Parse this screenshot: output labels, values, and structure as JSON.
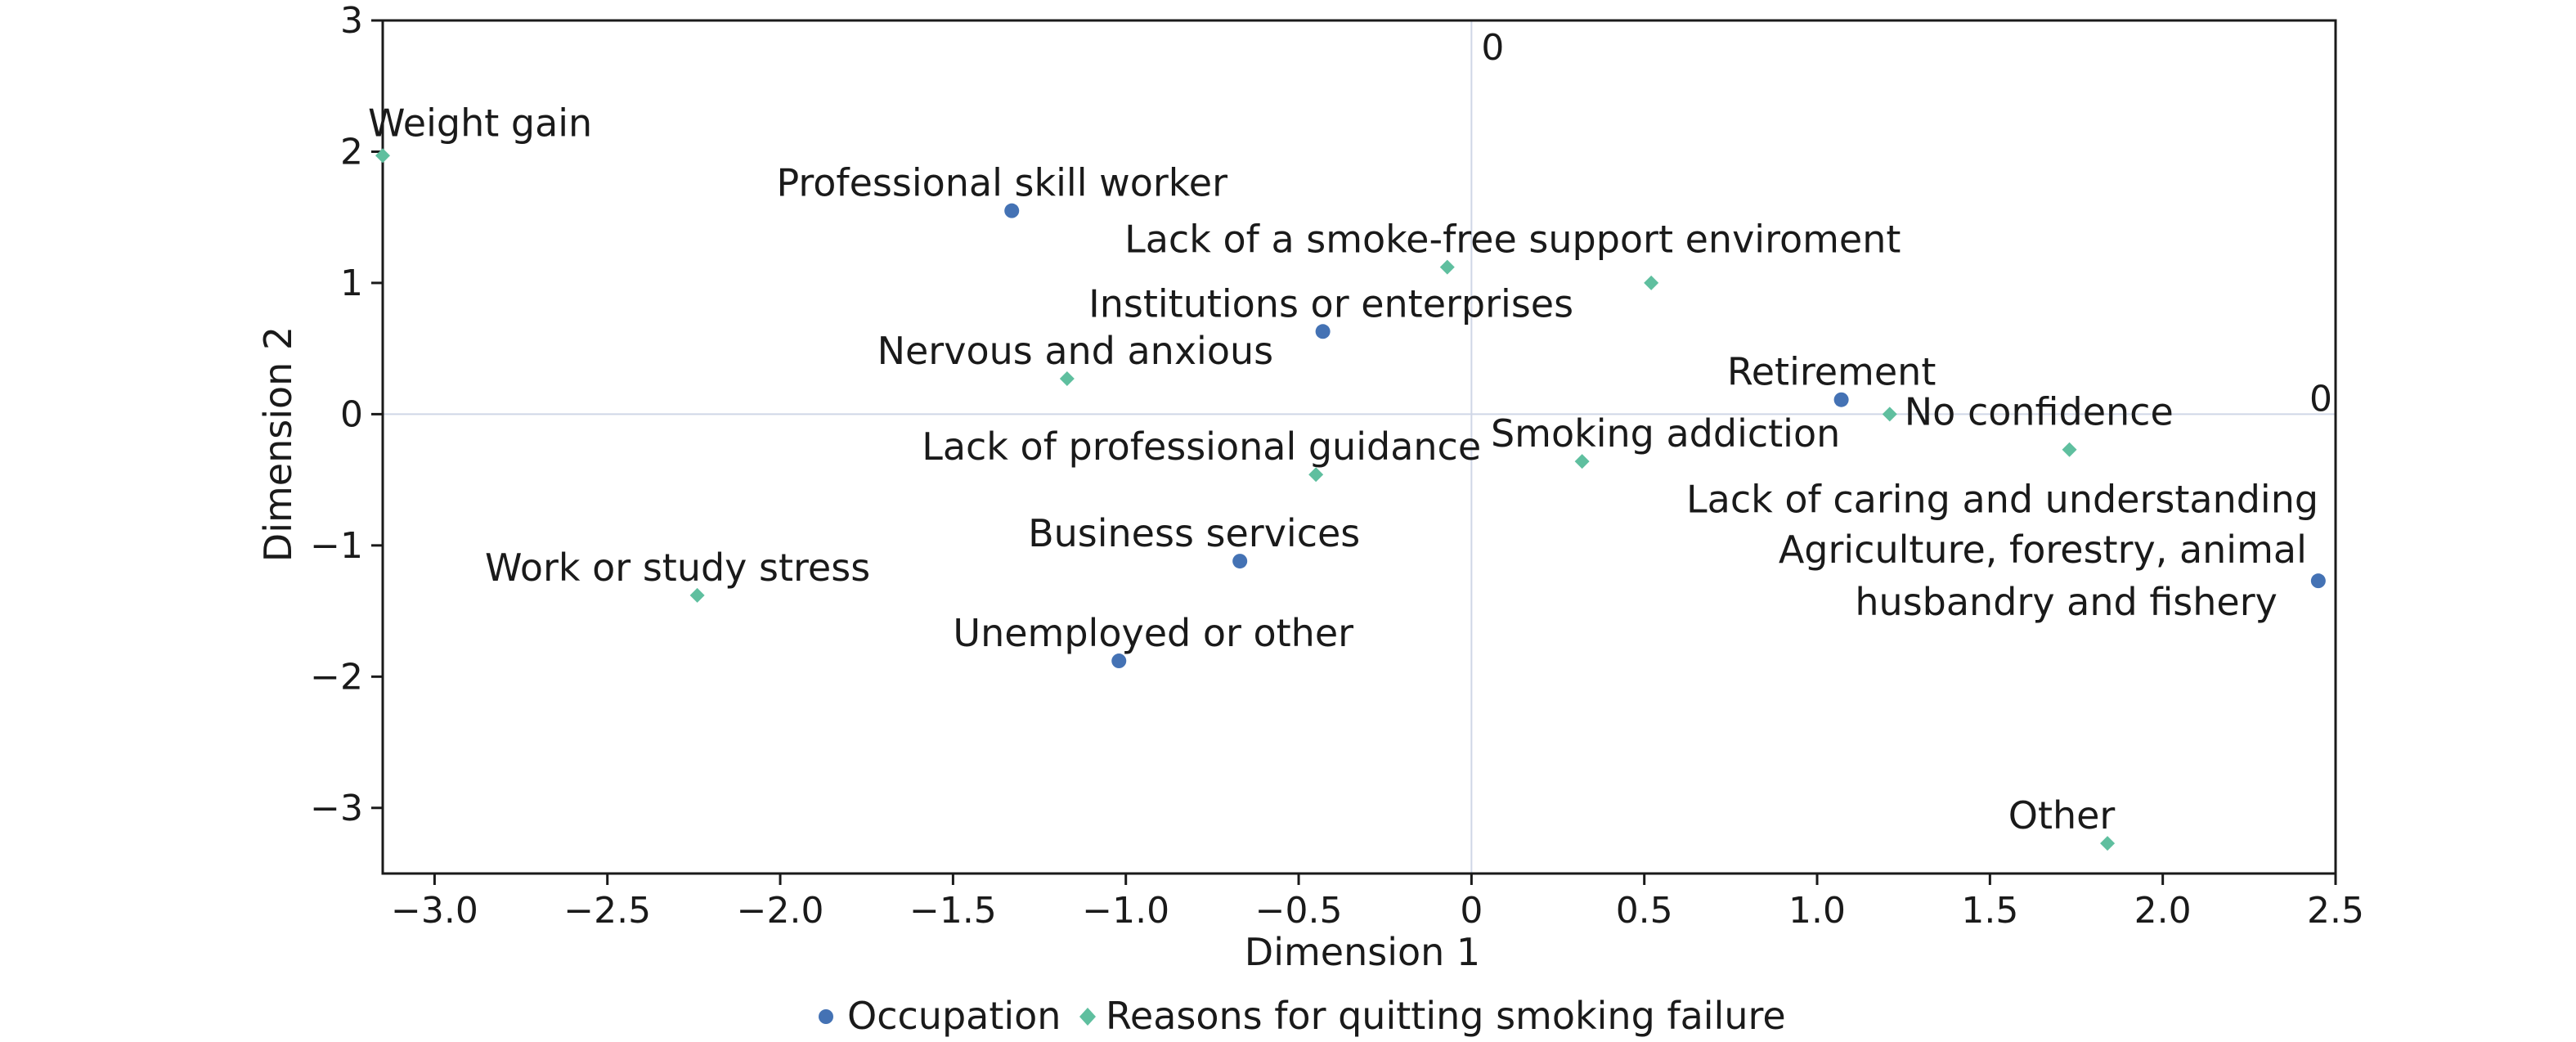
{
  "chart_data": {
    "type": "scatter",
    "xlabel": "Dimension 1",
    "ylabel": "Dimension 2",
    "xlim": [
      -3.15,
      2.5
    ],
    "ylim": [
      -3.5,
      3
    ],
    "x_ticks": [
      -3.0,
      -2.5,
      -2.0,
      -1.5,
      -1.0,
      -0.5,
      0,
      0.5,
      1.0,
      1.5,
      2.0,
      2.5
    ],
    "x_tick_labels": [
      "−3.0",
      "−2.5",
      "−2.0",
      "−1.5",
      "−1.0",
      "−0.5",
      "0",
      "0.5",
      "1.0",
      "1.5",
      "2.0",
      "2.5"
    ],
    "y_ticks": [
      3,
      2,
      1,
      0,
      -1,
      -2,
      -3
    ],
    "y_tick_labels": [
      "3",
      "2",
      "1",
      "0",
      "−1",
      "−2",
      "−3"
    ],
    "reference_line_labels": {
      "vertical": "0",
      "horizontal": "0"
    },
    "grid": false,
    "legend_position": "bottom",
    "series": [
      {
        "name": "Occupation",
        "marker": "circle",
        "color": "#4472b4",
        "points": [
          {
            "label": "Professional skill worker",
            "x": -1.33,
            "y": 1.55
          },
          {
            "label": "Institutions or enterprises",
            "x": -0.43,
            "y": 0.63
          },
          {
            "label": "Retirement",
            "x": 1.07,
            "y": 0.11
          },
          {
            "label": "Business services",
            "x": -0.67,
            "y": -1.12
          },
          {
            "label": "Unemployed or other",
            "x": -1.02,
            "y": -1.88
          },
          {
            "label": "Agriculture, forestry, animal husbandry and fishery",
            "x": 2.45,
            "y": -1.27
          }
        ]
      },
      {
        "name": "Reasons for quitting smoking failure",
        "marker": "diamond",
        "color": "#5fbf9f",
        "points": [
          {
            "label": "Weight gain",
            "x": -3.15,
            "y": 1.97
          },
          {
            "label": "Lack of a smoke-free support enviroment",
            "x": -0.07,
            "y": 1.12
          },
          {
            "label": "",
            "x": 0.52,
            "y": 1.0
          },
          {
            "label": "Nervous and anxious",
            "x": -1.17,
            "y": 0.27
          },
          {
            "label": "No confidence",
            "x": 1.21,
            "y": 0.0
          },
          {
            "label": "Lack of professional guidance",
            "x": -0.45,
            "y": -0.46
          },
          {
            "label": "Smoking addiction",
            "x": 0.32,
            "y": -0.36
          },
          {
            "label": "Lack of caring and understanding",
            "x": 1.73,
            "y": -0.27
          },
          {
            "label": "Work or study stress",
            "x": -2.24,
            "y": -1.38
          },
          {
            "label": "Other",
            "x": 1.84,
            "y": -3.27
          }
        ]
      }
    ]
  }
}
